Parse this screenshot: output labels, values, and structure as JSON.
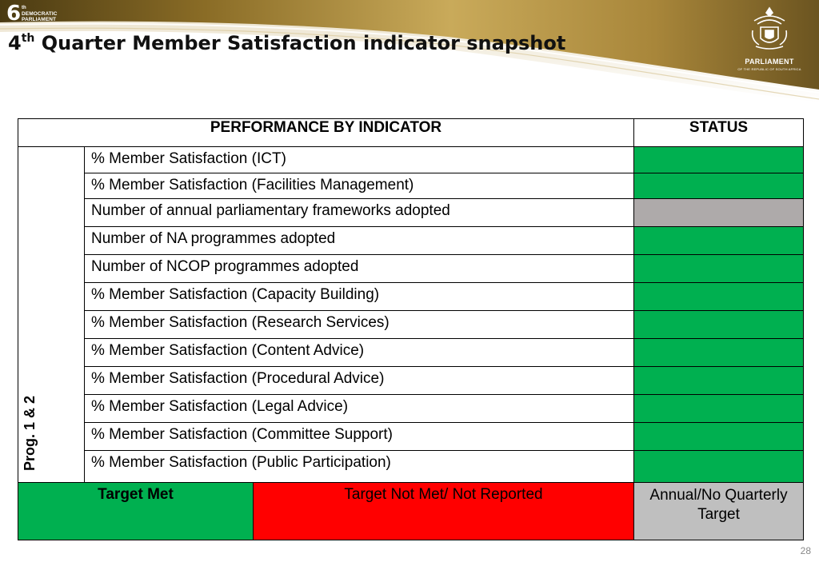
{
  "header": {
    "title_number": "4",
    "title_sup": "th",
    "title_rest": " Quarter Member Satisfaction indicator snapshot",
    "badge": {
      "digit": "6",
      "sup": "th",
      "line1": "DEMOCRATIC",
      "line2": "PARLIAMENT"
    },
    "logo": {
      "name": "PARLIAMENT",
      "subtitle": "OF THE REPUBLIC OF SOUTH AFRICA"
    }
  },
  "table": {
    "header_indicator": "PERFORMANCE BY INDICATOR",
    "header_status": "STATUS",
    "group_label": "Prog. 1 & 2",
    "rows": [
      {
        "indicator": "% Member Satisfaction (ICT)",
        "status": "Target Met",
        "status_color": "#00b050"
      },
      {
        "indicator": "% Member Satisfaction (Facilities Management)",
        "status": "Target Met",
        "status_color": "#00b050"
      },
      {
        "indicator": "Number of annual parliamentary frameworks adopted",
        "status": "Annual/No Quarterly Target",
        "status_color": "#aeaaaa"
      },
      {
        "indicator": "Number of NA programmes adopted",
        "status": "Target Met",
        "status_color": "#00b050"
      },
      {
        "indicator": "Number of NCOP programmes adopted",
        "status": "Target Met",
        "status_color": "#00b050"
      },
      {
        "indicator": "% Member Satisfaction (Capacity Building)",
        "status": "Target Met",
        "status_color": "#00b050"
      },
      {
        "indicator": "% Member Satisfaction (Research Services)",
        "status": "Target Met",
        "status_color": "#00b050"
      },
      {
        "indicator": "% Member Satisfaction (Content Advice)",
        "status": "Target Met",
        "status_color": "#00b050"
      },
      {
        "indicator": "% Member Satisfaction (Procedural Advice)",
        "status": "Target Met",
        "status_color": "#00b050"
      },
      {
        "indicator": "% Member Satisfaction (Legal Advice)",
        "status": "Target Met",
        "status_color": "#00b050"
      },
      {
        "indicator": "% Member Satisfaction (Committee Support)",
        "status": "Target Met",
        "status_color": "#00b050"
      },
      {
        "indicator": "% Member Satisfaction (Public Participation)",
        "status": "Target Met",
        "status_color": "#00b050"
      }
    ]
  },
  "legend": {
    "met": "Target Met",
    "not_met": "Target Not Met/ Not Reported",
    "annual_line1": "Annual/No Quarterly",
    "annual_line2": "Target",
    "colors": {
      "met": "#00b050",
      "not_met": "#ff0000",
      "annual": "#bfbfbf"
    }
  },
  "page_number": "28"
}
